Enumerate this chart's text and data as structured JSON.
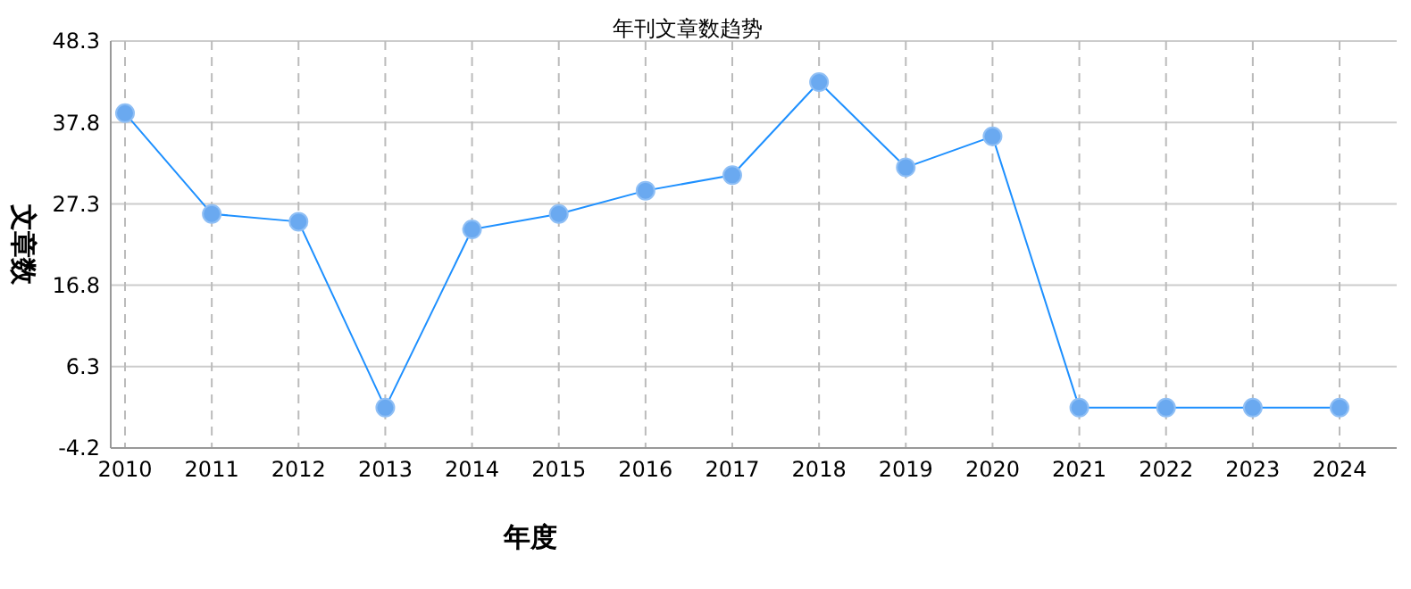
{
  "chart_data": {
    "type": "line",
    "title": "年刊文章数趋势",
    "xlabel": "年度",
    "ylabel": "文章数",
    "categories": [
      "2010",
      "2011",
      "2012",
      "2013",
      "2014",
      "2015",
      "2016",
      "2017",
      "2018",
      "2019",
      "2020",
      "2021",
      "2022",
      "2023",
      "2024"
    ],
    "series": [
      {
        "color": "#1e90ff",
        "values": [
          39,
          26,
          25,
          1,
          24,
          26,
          29,
          31,
          43,
          32,
          36,
          1,
          1,
          1,
          1
        ]
      }
    ],
    "ylim": [
      -4.2,
      48.3
    ],
    "yticks": [
      -4.2,
      6.3,
      16.8,
      27.3,
      37.8,
      48.3
    ],
    "grid": true,
    "marker": "circle",
    "line_style": "solid"
  }
}
